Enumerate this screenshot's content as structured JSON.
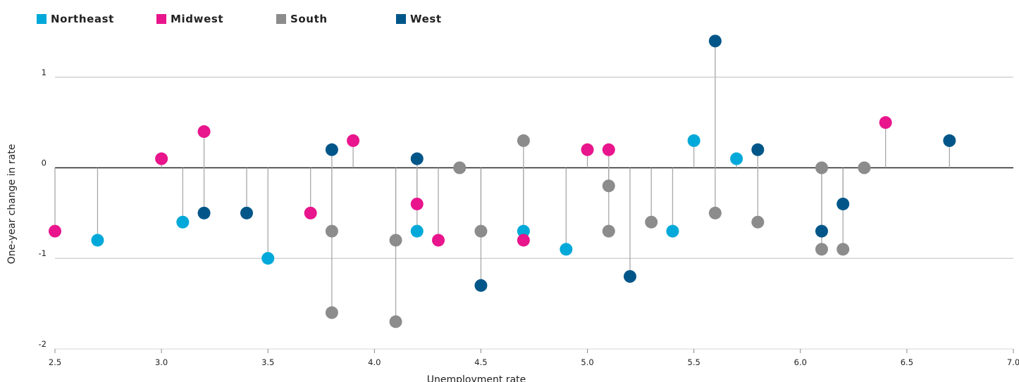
{
  "chart_data": {
    "type": "scatter",
    "xlabel": "Unemployment rate",
    "ylabel": "One-year change in rate",
    "xlim": [
      2.5,
      7.0
    ],
    "ylim": [
      -2,
      1.5
    ],
    "xticks": [
      "2.5",
      "3.0",
      "3.5",
      "4.0",
      "4.5",
      "5.0",
      "5.5",
      "6.0",
      "6.5",
      "7.0"
    ],
    "yticks": [
      "1",
      "0",
      "-1",
      "-2"
    ],
    "gridlines": [
      1,
      -1
    ],
    "legend_position": "top-left",
    "series": [
      {
        "name": "Northeast",
        "color": "#00a9d9",
        "points": [
          [
            2.7,
            -0.8
          ],
          [
            3.1,
            -0.6
          ],
          [
            3.5,
            -1.0
          ],
          [
            4.2,
            -0.7
          ],
          [
            4.7,
            -0.7
          ],
          [
            4.9,
            -0.9
          ],
          [
            5.4,
            -0.7
          ],
          [
            5.5,
            0.3
          ],
          [
            5.7,
            0.1
          ]
        ]
      },
      {
        "name": "Midwest",
        "color": "#e8158c",
        "points": [
          [
            2.5,
            -0.7
          ],
          [
            3.0,
            0.1
          ],
          [
            3.2,
            0.4
          ],
          [
            3.7,
            -0.5
          ],
          [
            3.9,
            0.3
          ],
          [
            4.2,
            -0.4
          ],
          [
            4.3,
            -0.8
          ],
          [
            4.7,
            -0.8
          ],
          [
            5.0,
            0.2
          ],
          [
            5.1,
            0.2
          ],
          [
            6.4,
            0.5
          ]
        ]
      },
      {
        "name": "South",
        "color": "#8c8c8c",
        "points": [
          [
            3.8,
            -0.7
          ],
          [
            3.8,
            -1.6
          ],
          [
            4.1,
            -0.8
          ],
          [
            4.1,
            -1.7
          ],
          [
            4.4,
            0.0
          ],
          [
            4.5,
            -0.7
          ],
          [
            4.7,
            0.3
          ],
          [
            5.1,
            -0.2
          ],
          [
            5.1,
            -0.7
          ],
          [
            5.3,
            -0.6
          ],
          [
            5.6,
            -0.5
          ],
          [
            5.8,
            -0.6
          ],
          [
            6.1,
            0.0
          ],
          [
            6.1,
            -0.9
          ],
          [
            6.2,
            -0.9
          ],
          [
            6.3,
            0.0
          ]
        ]
      },
      {
        "name": "West",
        "color": "#005689",
        "points": [
          [
            3.2,
            -0.5
          ],
          [
            3.4,
            -0.5
          ],
          [
            3.8,
            0.2
          ],
          [
            4.2,
            0.1
          ],
          [
            4.5,
            -1.3
          ],
          [
            5.2,
            -1.2
          ],
          [
            5.6,
            1.4
          ],
          [
            5.8,
            0.2
          ],
          [
            6.1,
            -0.7
          ],
          [
            6.2,
            -0.4
          ],
          [
            6.7,
            0.3
          ]
        ]
      }
    ]
  }
}
